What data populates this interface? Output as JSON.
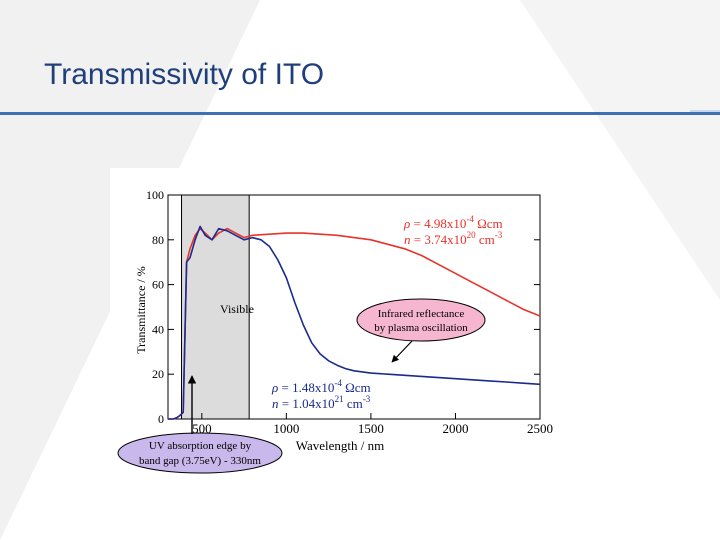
{
  "slide": {
    "title": "Transmissivity of ITO"
  },
  "chart_data": {
    "type": "line",
    "xlabel": "Wavelength / nm",
    "ylabel": "Transmittance / %",
    "xlim": [
      300,
      2500
    ],
    "ylim": [
      0,
      100
    ],
    "x_ticks": [
      500,
      1000,
      1500,
      2000,
      2500
    ],
    "y_ticks": [
      0,
      20,
      40,
      60,
      80,
      100
    ],
    "grid": false,
    "series": [
      {
        "color": "#e8332b",
        "x": [
          300,
          330,
          350,
          370,
          390,
          410,
          430,
          460,
          490,
          520,
          560,
          600,
          650,
          700,
          750,
          800,
          900,
          1000,
          1100,
          1200,
          1300,
          1400,
          1500,
          1600,
          1700,
          1800,
          1900,
          2000,
          2100,
          2200,
          2300,
          2400,
          2500
        ],
        "y": [
          0,
          0,
          0.5,
          1.5,
          3,
          70,
          76,
          82,
          85,
          83,
          80,
          83,
          85,
          83,
          81,
          82,
          82.5,
          83,
          83,
          82.5,
          82,
          81,
          80,
          78,
          76,
          73,
          69,
          65,
          61,
          57,
          53,
          49,
          46
        ]
      },
      {
        "color": "#1b2a8f",
        "x": [
          300,
          330,
          350,
          370,
          390,
          410,
          430,
          460,
          490,
          520,
          560,
          600,
          650,
          700,
          750,
          800,
          850,
          900,
          950,
          1000,
          1050,
          1100,
          1150,
          1200,
          1250,
          1300,
          1350,
          1400,
          1500,
          1600,
          1700,
          1800,
          1900,
          2000,
          2100,
          2200,
          2300,
          2400,
          2500
        ],
        "y": [
          0,
          0,
          0.5,
          1.5,
          3,
          70,
          72,
          80,
          86,
          82,
          80,
          85,
          84,
          82,
          80,
          81,
          80,
          77,
          71,
          63,
          52,
          42,
          34,
          29,
          26,
          24,
          22.5,
          21.5,
          20.5,
          20,
          19.5,
          19,
          18.5,
          18,
          17.5,
          17,
          16.5,
          16,
          15.5
        ]
      }
    ],
    "annotations": {
      "visible_region_label": "Visible",
      "visible_region_x": [
        380,
        780
      ],
      "red_rho_sym": "ρ",
      "red_rho_text": " = 4.98x10",
      "red_rho_exp": "-4",
      "red_rho_unit": " Ωcm",
      "red_n_sym": "n",
      "red_n_text": " = 3.74x10",
      "red_n_exp": "20",
      "red_n_unit": " cm",
      "red_n_unit_exp": "-3",
      "blue_rho_sym": "ρ",
      "blue_rho_text": " = 1.48x10",
      "blue_rho_exp": "-4",
      "blue_rho_unit": " Ωcm",
      "blue_n_sym": "n",
      "blue_n_text": " = 1.04x10",
      "blue_n_exp": "21",
      "blue_n_unit": " cm",
      "blue_n_unit_exp": "-3",
      "ir_callout_line1": "Infrared reflectance",
      "ir_callout_line2": "by plasma oscillation",
      "uv_callout_line1": "UV absorption edge by",
      "uv_callout_line2": "band gap (3.75eV) - 330nm"
    }
  }
}
